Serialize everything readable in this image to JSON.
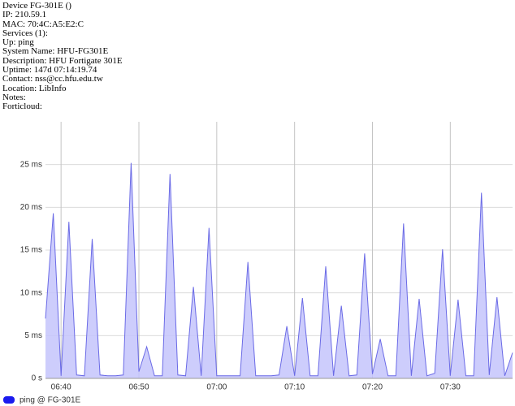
{
  "info": [
    "Device FG-301E ()",
    "IP: 210.59.1",
    "MAC: 70:4C:A5:E2:C",
    "Services (1):",
    "Up: ping",
    "System Name: HFU-FG301E",
    "Description: HFU Fortigate 301E",
    "Uptime: 147d 07:14:19.74",
    "Contact: nss@cc.hfu.edu.tw",
    "Location: LibInfo",
    "Notes:",
    "Forticloud:"
  ],
  "chart_data": {
    "type": "area",
    "x": [
      "06:38",
      "06:39",
      "06:40",
      "06:41",
      "06:42",
      "06:43",
      "06:44",
      "06:45",
      "06:46",
      "06:47",
      "06:48",
      "06:49",
      "06:50",
      "06:51",
      "06:52",
      "06:53",
      "06:54",
      "06:55",
      "06:56",
      "06:57",
      "06:58",
      "06:59",
      "07:00",
      "07:01",
      "07:02",
      "07:03",
      "07:04",
      "07:05",
      "07:06",
      "07:07",
      "07:08",
      "07:09",
      "07:10",
      "07:11",
      "07:12",
      "07:13",
      "07:14",
      "07:15",
      "07:16",
      "07:17",
      "07:18",
      "07:19",
      "07:20",
      "07:21",
      "07:22",
      "07:23",
      "07:24",
      "07:25",
      "07:26",
      "07:27",
      "07:28",
      "07:29",
      "07:30",
      "07:31",
      "07:32",
      "07:33",
      "07:34",
      "07:35",
      "07:36",
      "07:37",
      "07:38"
    ],
    "series": [
      {
        "name": "ping @ FG-301E",
        "color": "#6a6ae6",
        "fill": "#c4c4fb",
        "legend_color": "#1a1aee",
        "values": [
          7,
          19.3,
          0.3,
          18.3,
          0.4,
          0.3,
          16.3,
          0.4,
          0.3,
          0.3,
          0.4,
          25.2,
          0.8,
          3.7,
          0.3,
          0.3,
          23.9,
          0.4,
          0.3,
          10.7,
          0.3,
          17.6,
          0.3,
          0.3,
          0.3,
          0.3,
          13.6,
          0.3,
          0.3,
          0.3,
          0.4,
          6.1,
          0.3,
          9.4,
          0.3,
          0.3,
          13.1,
          0.3,
          8.5,
          0.3,
          0.4,
          14.6,
          0.5,
          4.6,
          0.3,
          0.3,
          18.1,
          0.3,
          9.3,
          0.3,
          0.6,
          15.1,
          0.3,
          9.2,
          0.3,
          0.3,
          21.7,
          0.4,
          9.5,
          0.3,
          3
        ]
      }
    ],
    "xlim": [
      "06:38",
      "07:38"
    ],
    "xticks": [
      "06:40",
      "06:50",
      "07:00",
      "07:10",
      "07:20",
      "07:30"
    ],
    "ylim": [
      0,
      30
    ],
    "yticks": [
      {
        "value": 0,
        "label": "0 s"
      },
      {
        "value": 5,
        "label": "5 ms"
      },
      {
        "value": 10,
        "label": "10 ms"
      },
      {
        "value": 15,
        "label": "15 ms"
      },
      {
        "value": 20,
        "label": "20 ms"
      },
      {
        "value": 25,
        "label": "25 ms"
      }
    ],
    "grid": true
  }
}
